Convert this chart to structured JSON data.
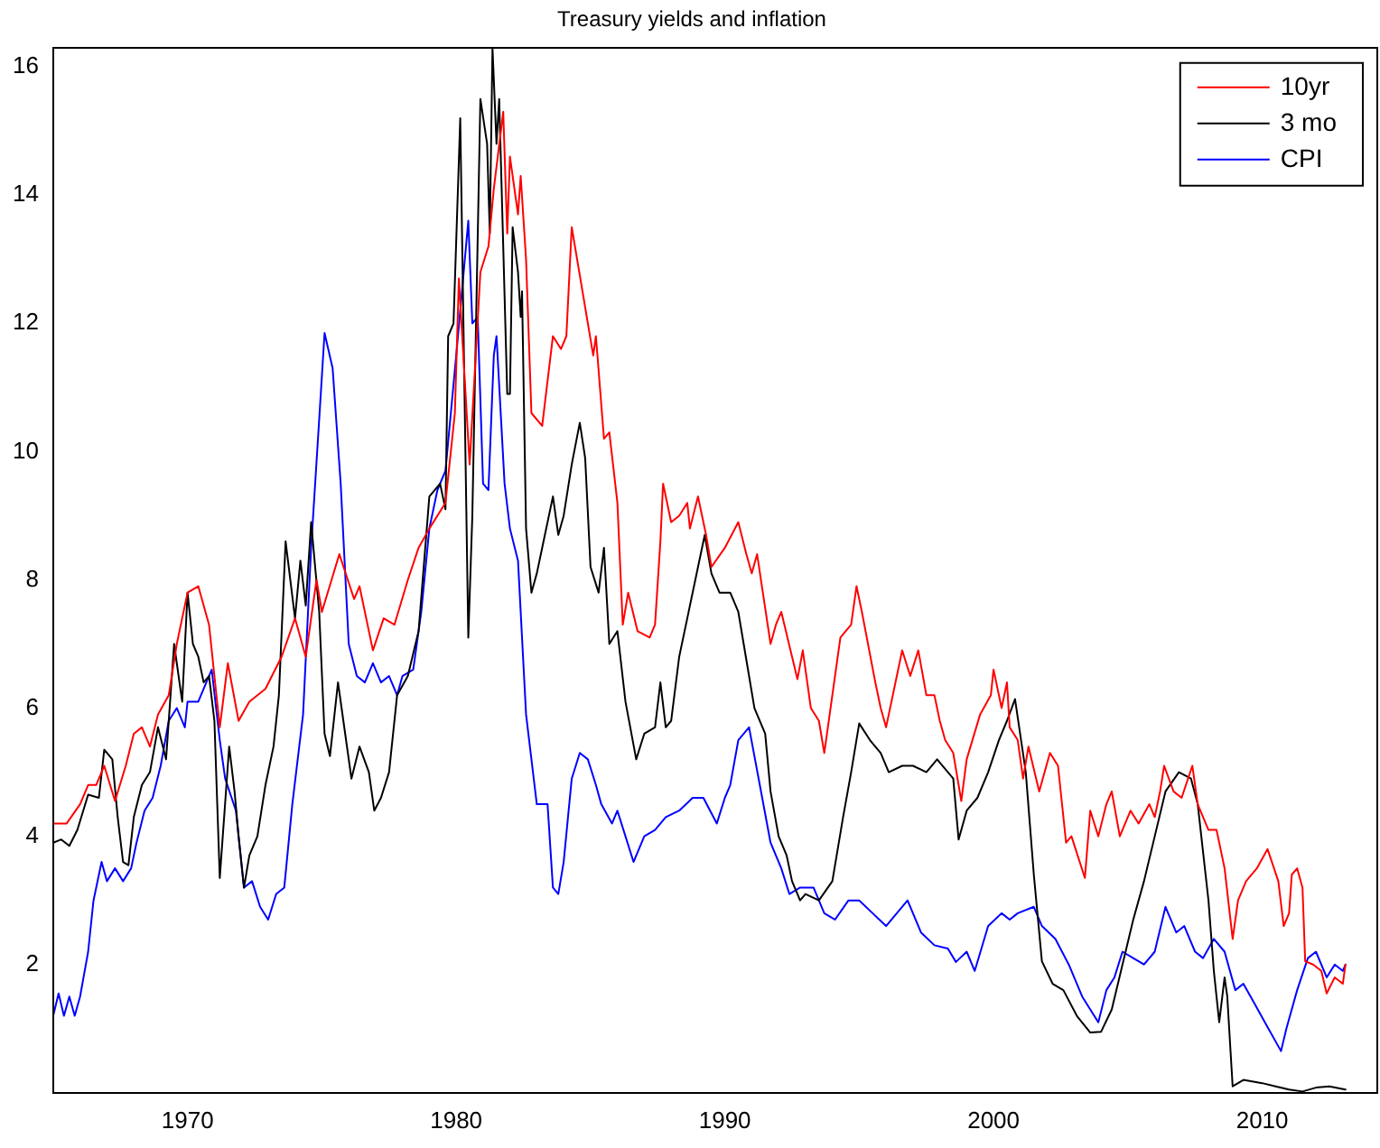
{
  "chart_data": {
    "type": "line",
    "title": "Treasury yields and inflation",
    "xlim": [
      1965,
      2014.25
    ],
    "xticks": [
      1970,
      1980,
      1990,
      2000,
      2010
    ],
    "ylim": [
      0,
      16.3
    ],
    "yticks": [
      2,
      4,
      6,
      8,
      10,
      12,
      14,
      16
    ],
    "legend": "top right",
    "series": [
      {
        "name": "10yr",
        "color": "#ff0000",
        "x": [
          1965.0,
          1965.5,
          1966.0,
          1966.3,
          1966.6,
          1966.9,
          1967.3,
          1967.7,
          1968.0,
          1968.3,
          1968.6,
          1968.9,
          1969.3,
          1969.6,
          1970.0,
          1970.4,
          1970.8,
          1971.2,
          1971.5,
          1971.9,
          1972.3,
          1972.9,
          1973.5,
          1974.0,
          1974.4,
          1974.8,
          1975.0,
          1975.65,
          1976.2,
          1976.4,
          1976.9,
          1977.3,
          1977.7,
          1978.2,
          1978.6,
          1979.0,
          1979.6,
          1979.95,
          1980.1,
          1980.5,
          1980.9,
          1981.2,
          1981.4,
          1981.75,
          1981.9,
          1982.0,
          1982.3,
          1982.4,
          1982.6,
          1982.8,
          1983.2,
          1983.6,
          1983.9,
          1984.1,
          1984.3,
          1984.7,
          1985.1,
          1985.2,
          1985.5,
          1985.7,
          1986.0,
          1986.2,
          1986.4,
          1986.75,
          1987.2,
          1987.4,
          1987.6,
          1987.7,
          1988.0,
          1988.3,
          1988.6,
          1988.7,
          1989.0,
          1989.3,
          1989.5,
          1990.0,
          1990.5,
          1990.8,
          1991.0,
          1991.2,
          1991.7,
          1991.9,
          1992.1,
          1992.7,
          1992.9,
          1993.2,
          1993.5,
          1993.7,
          1993.9,
          1994.3,
          1994.7,
          1994.9,
          1995.1,
          1995.6,
          1995.8,
          1996.0,
          1996.4,
          1996.6,
          1996.9,
          1997.2,
          1997.5,
          1997.8,
          1998.0,
          1998.2,
          1998.5,
          1998.8,
          1999.0,
          1999.5,
          1999.9,
          2000.0,
          2000.3,
          2000.5,
          2000.6,
          2000.9,
          2001.1,
          2001.3,
          2001.7,
          2002.1,
          2002.4,
          2002.7,
          2002.9,
          2003.4,
          2003.6,
          2003.9,
          2004.2,
          2004.4,
          2004.7,
          2005.1,
          2005.4,
          2005.8,
          2006.0,
          2006.2,
          2006.35,
          2006.7,
          2007.0,
          2007.4,
          2007.6,
          2008.0,
          2008.3,
          2008.6,
          2008.9,
          2009.1,
          2009.4,
          2009.8,
          2010.2,
          2010.6,
          2010.8,
          2011.0,
          2011.1,
          2011.3,
          2011.5,
          2011.6,
          2011.9,
          2012.2,
          2012.4,
          2012.7,
          2013.0,
          2013.1
        ],
        "values": [
          4.2,
          4.2,
          4.5,
          4.8,
          4.8,
          5.1,
          4.55,
          5.1,
          5.6,
          5.7,
          5.4,
          5.9,
          6.2,
          7.0,
          7.8,
          7.9,
          7.3,
          5.7,
          6.7,
          5.8,
          6.1,
          6.3,
          6.8,
          7.4,
          6.8,
          8.0,
          7.5,
          8.4,
          7.7,
          7.9,
          6.9,
          7.4,
          7.3,
          8.0,
          8.5,
          8.8,
          9.2,
          10.6,
          12.7,
          9.8,
          12.8,
          13.2,
          14.1,
          15.3,
          13.4,
          14.6,
          13.7,
          14.3,
          13.0,
          10.6,
          10.4,
          11.8,
          11.6,
          11.8,
          13.5,
          12.5,
          11.5,
          11.8,
          10.2,
          10.3,
          9.2,
          7.3,
          7.8,
          7.2,
          7.1,
          7.3,
          8.6,
          9.5,
          8.9,
          9.0,
          9.2,
          8.8,
          9.3,
          8.7,
          8.2,
          8.5,
          8.9,
          8.4,
          8.1,
          8.4,
          7.0,
          7.3,
          7.5,
          6.45,
          6.9,
          6.0,
          5.8,
          5.3,
          5.9,
          7.1,
          7.3,
          7.9,
          7.5,
          6.4,
          6.0,
          5.7,
          6.5,
          6.9,
          6.5,
          6.9,
          6.2,
          6.2,
          5.8,
          5.5,
          5.3,
          4.55,
          5.2,
          5.9,
          6.2,
          6.6,
          6.0,
          6.4,
          5.7,
          5.5,
          4.9,
          5.4,
          4.7,
          5.3,
          5.1,
          3.9,
          4.0,
          3.35,
          4.4,
          4.0,
          4.5,
          4.7,
          4.0,
          4.4,
          4.2,
          4.5,
          4.3,
          4.7,
          5.1,
          4.7,
          4.6,
          5.1,
          4.5,
          4.1,
          4.1,
          3.5,
          2.4,
          3.0,
          3.3,
          3.5,
          3.8,
          3.3,
          2.6,
          2.8,
          3.4,
          3.5,
          3.2,
          2.05,
          2.0,
          1.9,
          1.55,
          1.8,
          1.7,
          2.0
        ]
      },
      {
        "name": "3 mo",
        "color": "#000000",
        "x": [
          1965.0,
          1965.3,
          1965.6,
          1965.9,
          1966.3,
          1966.7,
          1966.9,
          1967.2,
          1967.4,
          1967.6,
          1967.8,
          1968.0,
          1968.3,
          1968.6,
          1968.9,
          1969.2,
          1969.5,
          1969.8,
          1970.0,
          1970.2,
          1970.4,
          1970.6,
          1970.8,
          1971.0,
          1971.2,
          1971.55,
          1971.75,
          1971.9,
          1972.1,
          1972.3,
          1972.6,
          1972.9,
          1973.2,
          1973.4,
          1973.65,
          1974.0,
          1974.2,
          1974.4,
          1974.6,
          1974.9,
          1975.1,
          1975.3,
          1975.6,
          1975.8,
          1976.1,
          1976.4,
          1976.75,
          1976.95,
          1977.2,
          1977.5,
          1977.8,
          1978.2,
          1978.6,
          1979.0,
          1979.4,
          1979.6,
          1979.7,
          1979.9,
          1980.15,
          1980.45,
          1980.6,
          1980.9,
          1981.15,
          1981.25,
          1981.35,
          1981.5,
          1981.6,
          1981.9,
          1982.0,
          1982.1,
          1982.3,
          1982.4,
          1982.45,
          1982.6,
          1982.8,
          1983.0,
          1983.2,
          1983.6,
          1983.8,
          1984.0,
          1984.3,
          1984.6,
          1984.8,
          1985.0,
          1985.3,
          1985.5,
          1985.7,
          1986.0,
          1986.3,
          1986.7,
          1987.0,
          1987.4,
          1987.6,
          1987.8,
          1988.0,
          1988.3,
          1988.6,
          1989.25,
          1989.5,
          1989.8,
          1990.2,
          1990.5,
          1990.9,
          1991.1,
          1991.5,
          1991.7,
          1992.0,
          1992.3,
          1992.5,
          1992.8,
          1993.0,
          1993.5,
          1994.0,
          1994.4,
          1994.7,
          1995.0,
          1995.4,
          1995.8,
          1996.1,
          1996.6,
          1997.0,
          1997.5,
          1997.9,
          1998.5,
          1998.7,
          1999.0,
          1999.4,
          1999.8,
          2000.2,
          2000.5,
          2000.8,
          2001.2,
          2001.5,
          2001.8,
          2002.2,
          2002.6,
          2003.1,
          2003.6,
          2004.0,
          2004.4,
          2004.8,
          2005.2,
          2005.6,
          2006.0,
          2006.4,
          2006.9,
          2007.35,
          2007.6,
          2008.0,
          2008.2,
          2008.4,
          2008.6,
          2008.7,
          2008.9,
          2009.3,
          2010.0,
          2010.5,
          2011.0,
          2011.5,
          2012.0,
          2012.5,
          2013.1
        ],
        "values": [
          3.9,
          3.95,
          3.85,
          4.1,
          4.65,
          4.6,
          5.35,
          5.2,
          4.3,
          3.6,
          3.55,
          4.3,
          4.8,
          5.0,
          5.7,
          5.2,
          7.0,
          6.1,
          7.8,
          7.0,
          6.8,
          6.4,
          6.5,
          5.8,
          3.35,
          5.4,
          4.7,
          4.0,
          3.2,
          3.7,
          4.0,
          4.8,
          5.4,
          6.2,
          8.6,
          7.4,
          8.3,
          7.6,
          8.9,
          7.5,
          5.6,
          5.25,
          6.4,
          5.8,
          4.9,
          5.4,
          5.0,
          4.4,
          4.6,
          5.0,
          6.2,
          6.5,
          7.2,
          9.3,
          9.5,
          9.1,
          11.8,
          12.0,
          15.2,
          7.1,
          9.0,
          15.5,
          14.8,
          13.4,
          16.3,
          14.8,
          15.5,
          10.9,
          10.9,
          13.5,
          12.8,
          12.1,
          12.5,
          8.8,
          7.8,
          8.1,
          8.5,
          9.3,
          8.7,
          9.0,
          9.8,
          10.45,
          9.9,
          8.2,
          7.8,
          8.5,
          7.0,
          7.2,
          6.1,
          5.2,
          5.6,
          5.7,
          6.4,
          5.7,
          5.8,
          6.8,
          7.4,
          8.7,
          8.1,
          7.8,
          7.8,
          7.5,
          6.5,
          6.0,
          5.6,
          4.7,
          4.0,
          3.7,
          3.3,
          3.0,
          3.1,
          3.0,
          3.3,
          4.3,
          5.0,
          5.76,
          5.5,
          5.3,
          5.0,
          5.1,
          5.1,
          5.0,
          5.2,
          4.9,
          3.95,
          4.4,
          4.6,
          5.0,
          5.5,
          5.8,
          6.14,
          5.0,
          3.4,
          2.05,
          1.7,
          1.6,
          1.2,
          0.94,
          0.95,
          1.3,
          2.0,
          2.7,
          3.3,
          4.0,
          4.7,
          5.0,
          4.9,
          4.5,
          3.0,
          1.9,
          1.1,
          1.8,
          1.5,
          0.1,
          0.2,
          0.15,
          0.1,
          0.05,
          0.02,
          0.08,
          0.1,
          0.05
        ]
      },
      {
        "name": "CPI",
        "color": "#0000ff",
        "x": [
          1965.0,
          1965.2,
          1965.4,
          1965.6,
          1965.8,
          1966.0,
          1966.3,
          1966.5,
          1966.8,
          1967.0,
          1967.3,
          1967.6,
          1967.9,
          1968.1,
          1968.4,
          1968.7,
          1969.0,
          1969.3,
          1969.6,
          1969.9,
          1970.0,
          1970.4,
          1970.9,
          1971.2,
          1971.4,
          1971.8,
          1972.1,
          1972.4,
          1972.7,
          1973.0,
          1973.3,
          1973.6,
          1973.9,
          1974.3,
          1974.6,
          1974.9,
          1975.1,
          1975.4,
          1975.7,
          1976.0,
          1976.3,
          1976.6,
          1976.9,
          1977.2,
          1977.5,
          1977.8,
          1978.0,
          1978.4,
          1978.7,
          1979.0,
          1979.3,
          1979.6,
          1980.0,
          1980.45,
          1980.6,
          1980.8,
          1981.0,
          1981.2,
          1981.4,
          1981.5,
          1981.8,
          1982.0,
          1982.3,
          1982.6,
          1983.0,
          1983.4,
          1983.6,
          1983.8,
          1984.0,
          1984.3,
          1984.6,
          1984.9,
          1985.2,
          1985.4,
          1985.8,
          1986.0,
          1986.3,
          1986.6,
          1987.0,
          1987.4,
          1987.8,
          1988.3,
          1988.8,
          1989.2,
          1989.7,
          1990.0,
          1990.2,
          1990.5,
          1990.9,
          1991.3,
          1991.7,
          1992.1,
          1992.4,
          1992.8,
          1993.3,
          1993.7,
          1994.1,
          1994.6,
          1995.0,
          1995.5,
          1996.0,
          1996.4,
          1996.8,
          1997.3,
          1997.8,
          1998.3,
          1998.6,
          1999.0,
          1999.3,
          1999.8,
          2000.3,
          2000.6,
          2000.9,
          2001.5,
          2001.8,
          2002.3,
          2002.8,
          2003.3,
          2003.6,
          2003.9,
          2004.2,
          2004.5,
          2004.8,
          2005.2,
          2005.6,
          2006.0,
          2006.4,
          2006.8,
          2007.1,
          2007.5,
          2007.8,
          2008.2,
          2008.6,
          2009.0,
          2009.3,
          2009.7,
          2010.1,
          2010.7,
          2010.9,
          2011.3,
          2011.7,
          2012.0,
          2012.4,
          2012.7,
          2013.0,
          2013.1
        ],
        "values": [
          1.2,
          1.55,
          1.2,
          1.5,
          1.2,
          1.5,
          2.2,
          3.0,
          3.6,
          3.3,
          3.5,
          3.3,
          3.5,
          3.9,
          4.4,
          4.6,
          5.1,
          5.8,
          6.0,
          5.7,
          6.1,
          6.1,
          6.6,
          5.5,
          4.9,
          4.4,
          3.2,
          3.3,
          2.9,
          2.7,
          3.1,
          3.2,
          4.5,
          5.9,
          8.5,
          10.5,
          11.85,
          11.3,
          9.5,
          7.0,
          6.5,
          6.4,
          6.7,
          6.4,
          6.5,
          6.2,
          6.5,
          6.6,
          7.5,
          8.8,
          9.4,
          9.7,
          11.5,
          13.6,
          12.0,
          12.1,
          9.5,
          9.4,
          11.5,
          11.8,
          9.5,
          8.8,
          8.3,
          5.9,
          4.5,
          4.5,
          3.2,
          3.1,
          3.6,
          4.9,
          5.3,
          5.2,
          4.8,
          4.5,
          4.2,
          4.4,
          4.0,
          3.6,
          4.0,
          4.1,
          4.3,
          4.4,
          4.6,
          4.6,
          4.2,
          4.6,
          4.8,
          5.5,
          5.7,
          4.8,
          3.9,
          3.5,
          3.1,
          3.2,
          3.2,
          2.8,
          2.7,
          3.0,
          3.0,
          2.8,
          2.6,
          2.8,
          3.0,
          2.5,
          2.3,
          2.25,
          2.04,
          2.2,
          1.9,
          2.6,
          2.8,
          2.7,
          2.8,
          2.9,
          2.6,
          2.4,
          2.0,
          1.5,
          1.3,
          1.1,
          1.6,
          1.8,
          2.2,
          2.1,
          2.0,
          2.2,
          2.9,
          2.5,
          2.6,
          2.2,
          2.1,
          2.4,
          2.2,
          1.6,
          1.7,
          1.4,
          1.1,
          0.65,
          1.0,
          1.6,
          2.1,
          2.2,
          1.8,
          2.0,
          1.9,
          2.0
        ]
      }
    ]
  }
}
